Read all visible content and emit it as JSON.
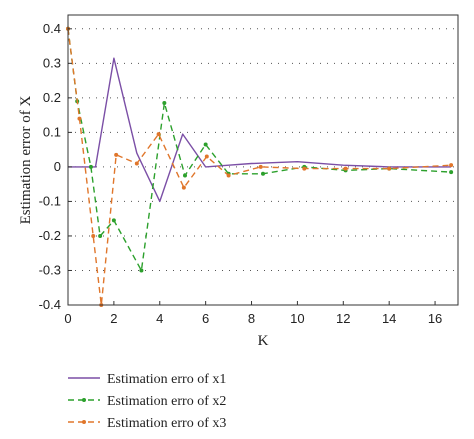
{
  "chart_data": {
    "type": "line",
    "xlabel": "K",
    "ylabel": "Estimation error of X",
    "xlim": [
      0,
      17
    ],
    "ylim": [
      -0.4,
      0.44
    ],
    "xticks": [
      0,
      2,
      4,
      6,
      8,
      10,
      12,
      14,
      16
    ],
    "yticks": [
      -0.4,
      -0.3,
      -0.2,
      -0.1,
      0,
      0.1,
      0.2,
      0.3,
      0.4
    ],
    "grid": "horizontal dotted",
    "legend_position": "bottom",
    "series": [
      {
        "name": "Estimation erro of x1",
        "color": "#7b4fa6",
        "dash": "solid",
        "marker": "none",
        "x": [
          0,
          1,
          1.2,
          2,
          3,
          4,
          5,
          6,
          7,
          8,
          10,
          12,
          14,
          16.7
        ],
        "y": [
          0,
          0,
          0,
          0.315,
          0.04,
          -0.1,
          0.095,
          0,
          0.005,
          0.01,
          0.015,
          0.005,
          0,
          0
        ]
      },
      {
        "name": "Estimation erro of x2",
        "color": "#2ca02c",
        "dash": "dashed",
        "marker": "dot",
        "x": [
          0,
          0.4,
          1,
          1.4,
          2,
          3.2,
          4.2,
          5.1,
          6,
          7,
          8.5,
          10.3,
          12.1,
          14,
          16.7
        ],
        "y": [
          0.4,
          0.19,
          0,
          -0.2,
          -0.155,
          -0.3,
          0.185,
          -0.025,
          0.065,
          -0.02,
          -0.02,
          0,
          -0.01,
          -0.005,
          -0.015
        ]
      },
      {
        "name": "Estimation erro of x3",
        "color": "#e0762b",
        "dash": "dashed",
        "marker": "dot",
        "x": [
          0,
          0.5,
          1.1,
          1.45,
          2.1,
          3,
          3.95,
          5.05,
          6.05,
          7,
          8.4,
          10.3,
          12.1,
          14,
          16.7
        ],
        "y": [
          0.4,
          0.14,
          -0.2,
          -0.4,
          0.035,
          0.01,
          0.095,
          -0.06,
          0.03,
          -0.025,
          0,
          -0.005,
          -0.005,
          -0.005,
          0.005
        ]
      }
    ]
  }
}
